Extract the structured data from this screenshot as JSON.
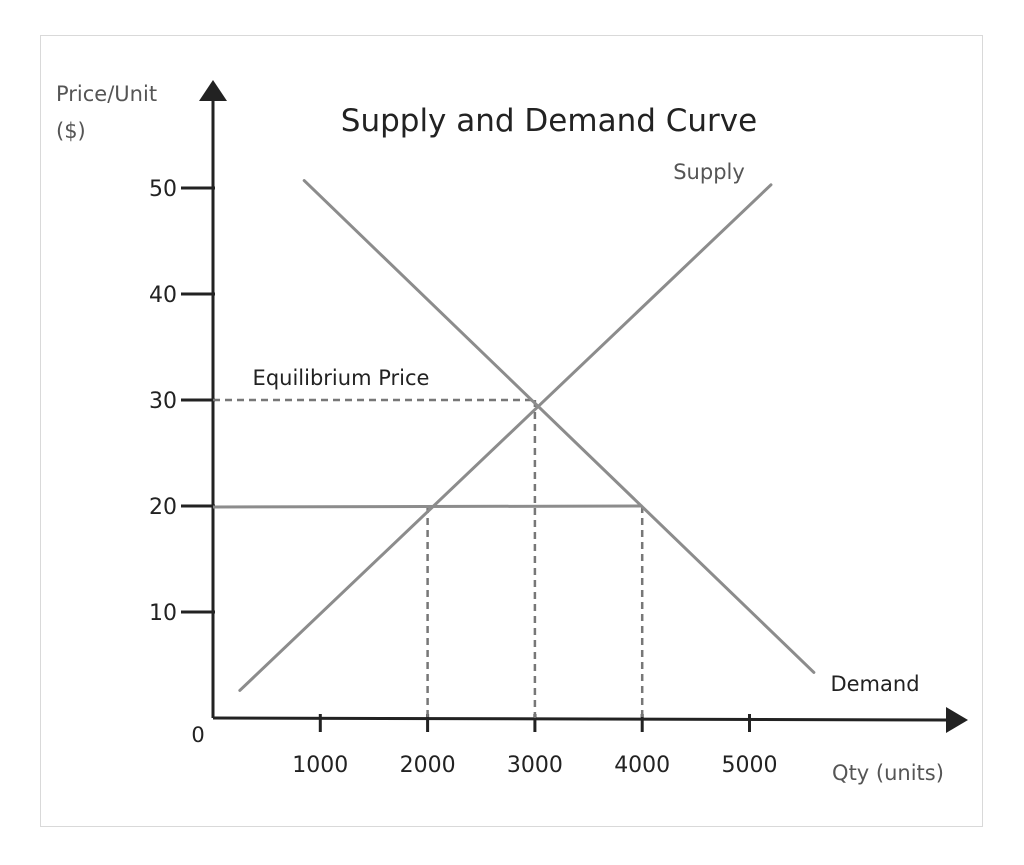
{
  "chart_data": {
    "type": "line",
    "title": "Supply and Demand Curve",
    "ylabel_line1": "Price/Unit",
    "ylabel_line2": "($)",
    "xlabel": "Qty (units)",
    "origin_label": "0",
    "xlim": [
      0,
      5000
    ],
    "ylim": [
      0,
      50
    ],
    "x_ticks": [
      1000,
      2000,
      3000,
      4000,
      5000
    ],
    "y_ticks": [
      10,
      20,
      30,
      40,
      50
    ],
    "series": [
      {
        "name": "Supply",
        "points": [
          [
            250,
            2.6
          ],
          [
            5200,
            50.3
          ]
        ]
      },
      {
        "name": "Demand",
        "points": [
          [
            850,
            50.7
          ],
          [
            5600,
            4.3
          ]
        ]
      }
    ],
    "price_line": {
      "value": 20,
      "x_from": 0,
      "x_to": 4000
    },
    "equilibrium": {
      "label": "Equilibrium Price",
      "x": 3000,
      "y": 30
    },
    "reference_drops": [
      2000,
      3000,
      4000
    ],
    "colors": {
      "axis": "#222222",
      "curve": "#8c8c8c",
      "dashed": "#777777"
    }
  }
}
